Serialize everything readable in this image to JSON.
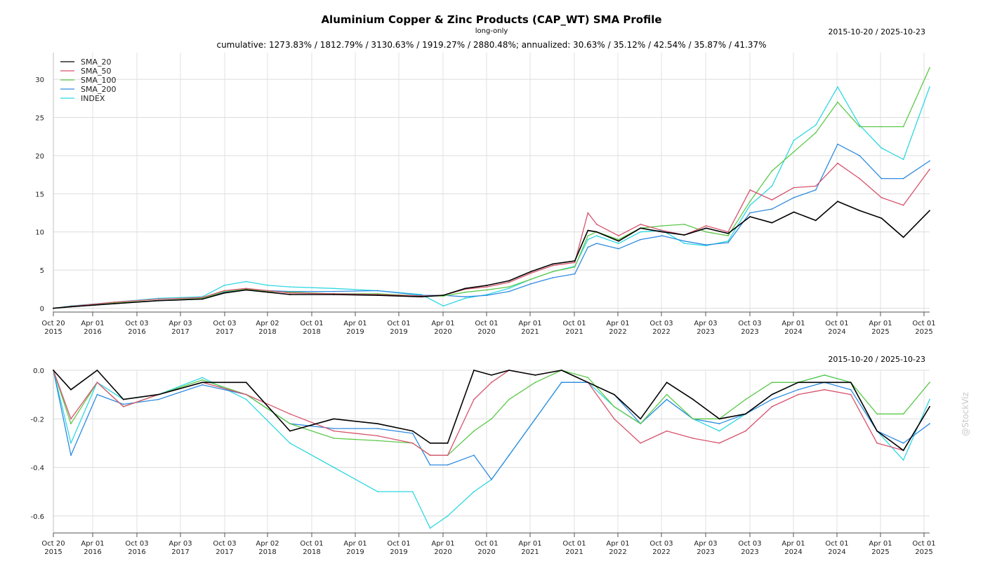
{
  "header": {
    "title": "Aluminium Copper & Zinc Products (CAP_WT) SMA Profile",
    "subtitle": "long-only",
    "date_range_top": "2015-10-20 / 2025-10-23",
    "date_range_bottom": "2015-10-20 / 2025-10-23",
    "summary": "cumulative: 1273.83% / 1812.79% / 3130.63% / 1919.27% / 2880.48%; annualized: 30.63% / 35.12% / 42.54% / 35.87% / 41.37%"
  },
  "watermark": "@StockViz",
  "chart_data": [
    {
      "type": "line",
      "title": "Aluminium Copper & Zinc Products (CAP_WT) SMA Profile",
      "panel": "cumulative",
      "ylim": [
        -0.5,
        33.5
      ],
      "yticks": [
        "0",
        "5",
        "10",
        "15",
        "20",
        "25",
        "30"
      ],
      "grid": true,
      "legend_position": "top-left",
      "x_ticks": [
        [
          "Oct 20",
          "2015"
        ],
        [
          "Apr 01",
          "2016"
        ],
        [
          "Oct 03",
          "2016"
        ],
        [
          "Apr 03",
          "2017"
        ],
        [
          "Oct 03",
          "2017"
        ],
        [
          "Apr 02",
          "2018"
        ],
        [
          "Oct 01",
          "2018"
        ],
        [
          "Apr 01",
          "2019"
        ],
        [
          "Oct 01",
          "2019"
        ],
        [
          "Apr 01",
          "2020"
        ],
        [
          "Oct 01",
          "2020"
        ],
        [
          "Apr 01",
          "2021"
        ],
        [
          "Oct 01",
          "2021"
        ],
        [
          "Apr 01",
          "2022"
        ],
        [
          "Oct 03",
          "2022"
        ],
        [
          "Apr 03",
          "2023"
        ],
        [
          "Oct 03",
          "2023"
        ],
        [
          "Apr 01",
          "2024"
        ],
        [
          "Oct 01",
          "2024"
        ],
        [
          "Apr 01",
          "2025"
        ],
        [
          "Oct 01",
          "2025"
        ]
      ],
      "x": [
        2015.8,
        2016.0,
        2016.5,
        2017.0,
        2017.5,
        2017.75,
        2018.0,
        2018.25,
        2018.5,
        2019.0,
        2019.5,
        2020.0,
        2020.25,
        2020.5,
        2020.75,
        2021.0,
        2021.25,
        2021.5,
        2021.75,
        2021.9,
        2022.0,
        2022.25,
        2022.5,
        2022.75,
        2023.0,
        2023.25,
        2023.5,
        2023.75,
        2024.0,
        2024.25,
        2024.5,
        2024.75,
        2025.0,
        2025.25,
        2025.5,
        2025.8
      ],
      "series": [
        {
          "name": "SMA_20",
          "color": "#000000",
          "values": [
            0,
            0.2,
            0.6,
            1.0,
            1.2,
            2.0,
            2.4,
            2.1,
            1.8,
            1.8,
            1.7,
            1.5,
            1.7,
            2.6,
            3.0,
            3.6,
            4.8,
            5.8,
            6.2,
            10.2,
            10.0,
            8.8,
            10.5,
            10.0,
            9.6,
            10.5,
            9.8,
            12.0,
            11.2,
            12.6,
            11.5,
            14.0,
            12.8,
            11.8,
            9.3,
            12.8
          ]
        },
        {
          "name": "SMA_50",
          "color": "#d6536d",
          "values": [
            0,
            0.25,
            0.8,
            1.2,
            1.4,
            2.3,
            2.6,
            2.3,
            2.0,
            1.9,
            1.8,
            1.6,
            1.7,
            2.5,
            2.8,
            3.4,
            4.6,
            5.6,
            6.0,
            12.5,
            11.0,
            9.5,
            11.0,
            10.2,
            9.6,
            10.8,
            10.0,
            15.5,
            14.2,
            15.8,
            16.0,
            19.0,
            17.0,
            14.5,
            13.5,
            18.2
          ]
        },
        {
          "name": "SMA_100",
          "color": "#5cc94a",
          "values": [
            0,
            0.2,
            0.7,
            1.0,
            1.3,
            2.2,
            2.5,
            2.2,
            2.1,
            1.9,
            1.9,
            1.6,
            1.6,
            2.1,
            2.4,
            2.8,
            3.8,
            4.8,
            5.4,
            9.5,
            10.0,
            9.0,
            10.5,
            10.8,
            11.0,
            10.0,
            9.5,
            14.0,
            18.0,
            20.5,
            23.0,
            27.0,
            23.8,
            23.8,
            23.8,
            31.5
          ]
        },
        {
          "name": "SMA_200",
          "color": "#2f8be0",
          "values": [
            0,
            0.2,
            0.6,
            1.0,
            1.2,
            2.1,
            2.4,
            2.3,
            2.2,
            2.2,
            2.3,
            1.7,
            1.7,
            1.5,
            1.7,
            2.2,
            3.2,
            4.0,
            4.5,
            8.0,
            8.5,
            7.8,
            9.0,
            9.5,
            8.8,
            8.3,
            8.6,
            12.5,
            13.0,
            14.5,
            15.5,
            21.5,
            20.0,
            17.0,
            17.0,
            19.3
          ]
        },
        {
          "name": "INDEX",
          "color": "#2fd7e2",
          "values": [
            0,
            0.3,
            0.8,
            1.3,
            1.5,
            3.0,
            3.5,
            3.0,
            2.8,
            2.6,
            2.3,
            1.8,
            0.3,
            1.3,
            1.8,
            2.6,
            3.8,
            4.8,
            5.5,
            9.0,
            9.5,
            8.5,
            10.0,
            10.2,
            8.5,
            8.2,
            8.8,
            13.5,
            16.0,
            22.0,
            24.0,
            29.0,
            24.0,
            21.0,
            19.5,
            29.0
          ]
        }
      ]
    },
    {
      "type": "line",
      "panel": "drawdown",
      "ylim": [
        -0.67,
        0.0
      ],
      "yticks": [
        "0.0",
        "-0.2",
        "-0.4",
        "-0.6"
      ],
      "grid": true,
      "x": [
        2015.8,
        2016.0,
        2016.3,
        2016.6,
        2017.0,
        2017.5,
        2018.0,
        2018.5,
        2019.0,
        2019.5,
        2019.9,
        2020.1,
        2020.3,
        2020.6,
        2020.8,
        2021.0,
        2021.3,
        2021.6,
        2021.9,
        2022.2,
        2022.5,
        2022.8,
        2023.1,
        2023.4,
        2023.7,
        2024.0,
        2024.3,
        2024.6,
        2024.9,
        2025.2,
        2025.5,
        2025.8
      ],
      "series": [
        {
          "name": "SMA_20",
          "color": "#000000",
          "values": [
            0,
            -0.08,
            0,
            -0.12,
            -0.1,
            -0.05,
            -0.05,
            -0.25,
            -0.2,
            -0.22,
            -0.25,
            -0.3,
            -0.3,
            0,
            -0.02,
            0,
            -0.02,
            0,
            -0.05,
            -0.1,
            -0.2,
            -0.05,
            -0.12,
            -0.2,
            -0.18,
            -0.1,
            -0.05,
            -0.05,
            -0.05,
            -0.25,
            -0.33,
            -0.15
          ]
        },
        {
          "name": "SMA_50",
          "color": "#d6536d",
          "values": [
            0,
            -0.2,
            -0.05,
            -0.15,
            -0.1,
            -0.05,
            -0.1,
            -0.18,
            -0.25,
            -0.27,
            -0.3,
            -0.35,
            -0.35,
            -0.12,
            -0.05,
            0,
            -0.02,
            0,
            -0.05,
            -0.2,
            -0.3,
            -0.25,
            -0.28,
            -0.3,
            -0.25,
            -0.15,
            -0.1,
            -0.08,
            -0.1,
            -0.3,
            -0.33,
            -0.15
          ]
        },
        {
          "name": "SMA_100",
          "color": "#5cc94a",
          "values": [
            0,
            -0.22,
            -0.05,
            -0.15,
            -0.1,
            -0.04,
            -0.1,
            -0.22,
            -0.28,
            -0.29,
            -0.3,
            -0.35,
            -0.35,
            -0.25,
            -0.2,
            -0.12,
            -0.05,
            0,
            -0.03,
            -0.15,
            -0.22,
            -0.1,
            -0.2,
            -0.2,
            -0.12,
            -0.05,
            -0.05,
            -0.02,
            -0.05,
            -0.18,
            -0.18,
            -0.05
          ]
        },
        {
          "name": "SMA_200",
          "color": "#2f8be0",
          "values": [
            0,
            -0.35,
            -0.1,
            -0.14,
            -0.12,
            -0.06,
            -0.1,
            -0.22,
            -0.24,
            -0.24,
            -0.26,
            -0.39,
            -0.39,
            -0.35,
            -0.45,
            -0.35,
            -0.2,
            -0.05,
            -0.05,
            -0.1,
            -0.22,
            -0.12,
            -0.2,
            -0.22,
            -0.18,
            -0.12,
            -0.08,
            -0.05,
            -0.08,
            -0.25,
            -0.3,
            -0.22
          ]
        },
        {
          "name": "INDEX",
          "color": "#2fd7e2",
          "values": [
            0,
            -0.3,
            -0.05,
            -0.12,
            -0.1,
            -0.03,
            -0.12,
            -0.3,
            -0.4,
            -0.5,
            -0.5,
            -0.65,
            -0.6,
            -0.5,
            -0.45,
            -0.35,
            -0.2,
            -0.05,
            -0.05,
            -0.15,
            -0.22,
            -0.12,
            -0.2,
            -0.25,
            -0.18,
            -0.1,
            -0.05,
            -0.02,
            -0.05,
            -0.25,
            -0.37,
            -0.12
          ]
        }
      ]
    }
  ]
}
